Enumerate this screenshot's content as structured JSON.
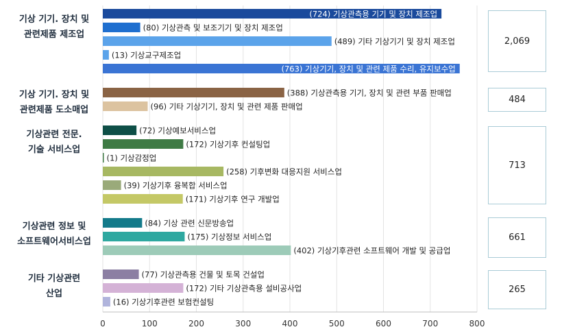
{
  "chart_data": {
    "type": "bar",
    "orientation": "horizontal",
    "xlim": [
      0,
      800
    ],
    "xticks": [
      "0",
      "100",
      "200",
      "300",
      "400",
      "500",
      "600",
      "700",
      "800"
    ],
    "grid": true,
    "groups": [
      {
        "label_lines": [
          "기상 기기. 장치 및",
          "관련제품 제조업"
        ],
        "total": "2,069",
        "items": [
          {
            "value": 724,
            "label": "(724)  기상관측용 기기 및 장치 제조업",
            "color": "#1a4a9c",
            "inside": true
          },
          {
            "value": 80,
            "label": "(80)  기상관측 및 보조기기 및 장치 제조업",
            "color": "#1f6fcf",
            "inside": false
          },
          {
            "value": 489,
            "label": "(489)  기타 기상기기 및 장치 제조업",
            "color": "#5ba3ea",
            "inside": false
          },
          {
            "value": 13,
            "label": "(13)  기상교구제조업",
            "color": "#5ba3ea",
            "inside": false
          },
          {
            "value": 763,
            "label": "(763)  기상기기, 장치 및 관련 제품 수리, 유지보수업",
            "color": "#3a74d4",
            "inside": true
          }
        ]
      },
      {
        "label_lines": [
          "기상 기기. 장치 및",
          "관련제품 도소매업"
        ],
        "total": "484",
        "items": [
          {
            "value": 388,
            "label": "(388) 기상관측용 기기, 장치 및 관련 부품 판매업",
            "color": "#8a6344",
            "inside": false
          },
          {
            "value": 96,
            "label": "(96)   기타 기상기기, 장치 및 관련 제품 판매업",
            "color": "#dcc3a0",
            "inside": false
          }
        ]
      },
      {
        "label_lines": [
          "기상관련 전문.",
          "기술 서비스업"
        ],
        "total": "713",
        "items": [
          {
            "value": 72,
            "label": "(72)   기상예보서비스업",
            "color": "#0e4f47",
            "inside": false
          },
          {
            "value": 172,
            "label": "(172) 기상기후 컨설팅업",
            "color": "#3f7b45",
            "inside": false
          },
          {
            "value": 1,
            "label": "(1)   기상감정업",
            "color": "#3f7b45",
            "inside": false
          },
          {
            "value": 258,
            "label": "(258)  기후변화 대응지원 서비스업",
            "color": "#a7b862",
            "inside": false
          },
          {
            "value": 39,
            "label": "(39)   기상기후 융복합 서비스업",
            "color": "#9aaa7a",
            "inside": false
          },
          {
            "value": 171,
            "label": "(171) 기상기후 연구 개발업",
            "color": "#c4c866",
            "inside": false
          }
        ]
      },
      {
        "label_lines": [
          "기상관련 정보 및",
          "소프트웨어서비스업"
        ],
        "total": "661",
        "items": [
          {
            "value": 84,
            "label": "(84)   기상 관련 신문방송업",
            "color": "#137a8a",
            "inside": false
          },
          {
            "value": 175,
            "label": "(175) 기상정보 서비스업",
            "color": "#2ea8a0",
            "inside": false
          },
          {
            "value": 402,
            "label": "(402) 기상기후관련 소프트웨어 개발 및 공급업",
            "color": "#9dcbb8",
            "inside": false
          }
        ]
      },
      {
        "label_lines": [
          "기타 기상관련",
          "산업"
        ],
        "total": "265",
        "items": [
          {
            "value": 77,
            "label": "(77)   기상관측용 건물 및 토목 건설업",
            "color": "#8c7fa3",
            "inside": false
          },
          {
            "value": 172,
            "label": "(172) 기타 기상관측용 설비공사업",
            "color": "#d4b2d6",
            "inside": false
          },
          {
            "value": 16,
            "label": "(16) 기상기후관련 보험컨설팅",
            "color": "#b0b4dc",
            "inside": false
          }
        ]
      }
    ]
  }
}
